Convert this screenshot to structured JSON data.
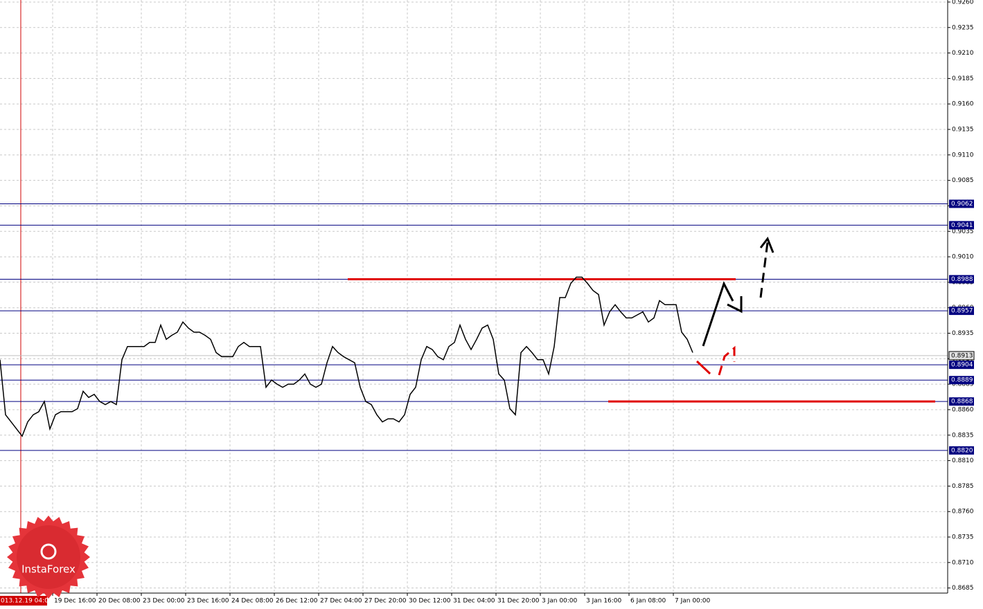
{
  "chart_data": {
    "type": "line",
    "color": "#000000",
    "grid": true,
    "xlim": [
      0,
      342
    ],
    "ylim": [
      0.868,
      0.9262
    ],
    "yticks": [
      {
        "value": 0.926,
        "label": "0.9260"
      },
      0.9235,
      {
        "value": 0.921,
        "label": "0.9210"
      },
      0.9185,
      {
        "value": 0.916,
        "label": "0.9160"
      },
      0.9135,
      {
        "value": 0.911,
        "label": "0.9110"
      },
      0.9085,
      {
        "value": 0.906,
        "label": "0.9060"
      },
      0.9035,
      {
        "value": 0.901,
        "label": "0.9010"
      },
      0.8985,
      {
        "value": 0.896,
        "label": "0.8960"
      },
      0.8935,
      {
        "value": 0.891,
        "label": "0.8910"
      },
      0.8885,
      {
        "value": 0.886,
        "label": "0.8860"
      },
      0.8835,
      {
        "value": 0.881,
        "label": "0.8810"
      },
      0.8785,
      {
        "value": 0.876,
        "label": "0.8760"
      },
      0.8735,
      {
        "value": 0.871,
        "label": "0.8710"
      },
      0.8685
    ],
    "xticks": [
      {
        "value": 19,
        "label": "19 Dec 16:00"
      },
      {
        "value": 35,
        "label": "20 Dec 08:00"
      },
      {
        "value": 51,
        "label": "23 Dec 00:00"
      },
      {
        "value": 67,
        "label": "23 Dec 16:00"
      },
      {
        "value": 83,
        "label": "24 Dec 08:00"
      },
      {
        "value": 99,
        "label": "26 Dec 12:00"
      },
      {
        "value": 115,
        "label": "27 Dec 04:00"
      },
      {
        "value": 131,
        "label": "27 Dec 20:00"
      },
      {
        "value": 147,
        "label": "30 Dec 12:00"
      },
      {
        "value": 163,
        "label": "31 Dec 04:00"
      },
      {
        "value": 179,
        "label": "31 Dec 20:00"
      },
      {
        "value": 195,
        "label": "3 Jan 00:00"
      },
      {
        "value": 211,
        "label": "3 Jan 16:00"
      },
      {
        "value": 227,
        "label": "6 Jan 08:00"
      },
      {
        "value": 243,
        "label": "7 Jan 00:00"
      }
    ],
    "cursor": {
      "value": 7.5,
      "label": "013.12.19 04:00"
    },
    "x": [
      0,
      2,
      4,
      6,
      8,
      10,
      12,
      14,
      16,
      18,
      20,
      22,
      24,
      26,
      28,
      30,
      32,
      34,
      36,
      38,
      40,
      42,
      44,
      46,
      48,
      50,
      52,
      54,
      56,
      58,
      60,
      62,
      64,
      66,
      68,
      70,
      72,
      74,
      76,
      78,
      80,
      82,
      84,
      86,
      88,
      90,
      92,
      94,
      96,
      98,
      100,
      102,
      104,
      106,
      108,
      110,
      112,
      114,
      116,
      118,
      120,
      122,
      124,
      126,
      128,
      130,
      132,
      134,
      136,
      138,
      140,
      142,
      144,
      146,
      148,
      150,
      152,
      154,
      156,
      158,
      160,
      162,
      164,
      166,
      168,
      170,
      172,
      174,
      176,
      178,
      180,
      182,
      184,
      186,
      188,
      190,
      192,
      194,
      196,
      198,
      200,
      202,
      204,
      206,
      208,
      210,
      212,
      214,
      216,
      218,
      220,
      222,
      224,
      226,
      228,
      230,
      232,
      234,
      236,
      238,
      240,
      242,
      244,
      246,
      248,
      250
    ],
    "values": [
      0.8909,
      0.8855,
      0.8848,
      0.8841,
      0.8834,
      0.8848,
      0.8855,
      0.8858,
      0.8868,
      0.8841,
      0.8855,
      0.8858,
      0.8858,
      0.8858,
      0.8861,
      0.8878,
      0.8872,
      0.8875,
      0.8868,
      0.8865,
      0.8868,
      0.8865,
      0.8909,
      0.8922,
      0.8922,
      0.8922,
      0.8922,
      0.8926,
      0.8926,
      0.8943,
      0.8929,
      0.8933,
      0.8936,
      0.8946,
      0.894,
      0.8936,
      0.8936,
      0.8933,
      0.8929,
      0.8916,
      0.8912,
      0.8912,
      0.8912,
      0.8922,
      0.8926,
      0.8922,
      0.8922,
      0.8922,
      0.8882,
      0.8889,
      0.8885,
      0.8882,
      0.8885,
      0.8885,
      0.8889,
      0.8895,
      0.8885,
      0.8882,
      0.8885,
      0.8906,
      0.8922,
      0.8916,
      0.8912,
      0.8909,
      0.8906,
      0.8882,
      0.8868,
      0.8865,
      0.8855,
      0.8848,
      0.8851,
      0.8851,
      0.8848,
      0.8855,
      0.8875,
      0.8882,
      0.8909,
      0.8922,
      0.8919,
      0.8912,
      0.8909,
      0.8922,
      0.8926,
      0.8943,
      0.8929,
      0.8919,
      0.8929,
      0.894,
      0.8943,
      0.8929,
      0.8895,
      0.8889,
      0.8861,
      0.8855,
      0.8916,
      0.8922,
      0.8916,
      0.8909,
      0.8909,
      0.8895,
      0.8922,
      0.897,
      0.897,
      0.8984,
      0.899,
      0.899,
      0.8984,
      0.8977,
      0.8973,
      0.8943,
      0.8956,
      0.8963,
      0.8956,
      0.895,
      0.895,
      0.8953,
      0.8956,
      0.8946,
      0.895,
      0.8967,
      0.8963,
      0.8963,
      0.8963,
      0.8936,
      0.8929,
      0.8916
    ],
    "levels": [
      {
        "value": 0.9062,
        "label": "0.9062"
      },
      {
        "value": 0.9041,
        "label": "0.9041"
      },
      {
        "value": 0.8988,
        "label": "0.8988"
      },
      {
        "value": 0.8957,
        "label": "0.8957"
      },
      {
        "value": 0.8904,
        "label": "0.8904"
      },
      {
        "value": 0.8889,
        "label": "0.8889"
      },
      {
        "value": 0.8868,
        "label": "0.8868"
      },
      {
        "value": 0.882,
        "label": "0.8820"
      }
    ],
    "level_color": "#000080",
    "current_price": {
      "value": 0.8913,
      "label": "0.8913"
    },
    "red_lines": [
      {
        "value": 0.8988,
        "x": [
          125.5,
          265.5
        ]
      },
      {
        "value": 0.8868,
        "x": [
          219.5,
          337.5
        ]
      }
    ],
    "red_color": "#e00000",
    "logo": "InstaForex"
  }
}
